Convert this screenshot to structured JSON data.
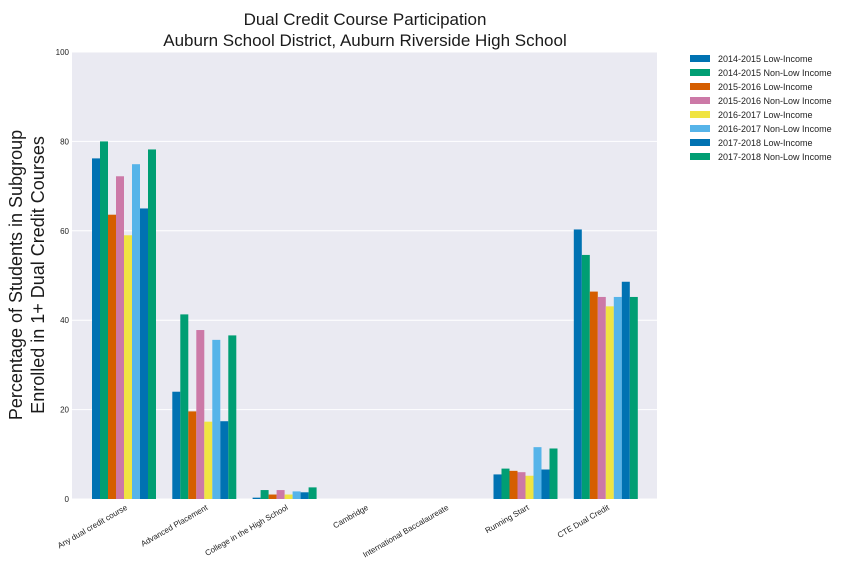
{
  "chart_data": {
    "type": "bar",
    "title": "Dual Credit Course Participation",
    "subtitle": "Auburn School District, Auburn Riverside High School",
    "ylabel_line1": "Percentage of Students in Subgroup",
    "ylabel_line2": "Enrolled in 1+ Dual Credit Courses",
    "ylim": [
      0,
      100
    ],
    "yticks": [
      0,
      20,
      40,
      60,
      80,
      100
    ],
    "grid": true,
    "legend_position": "right-outside",
    "categories": [
      "Any dual credit course",
      "Advanced Placement",
      "College in the High School",
      "Cambridge",
      "International Baccalaureate",
      "Running Start",
      "CTE Dual Credit"
    ],
    "series": [
      {
        "name": "2014-2015 Low-Income",
        "color": "#0072b2",
        "values": [
          76.2,
          24.0,
          0.3,
          0,
          0,
          5.5,
          60.3
        ]
      },
      {
        "name": "2014-2015 Non-Low Income",
        "color": "#009e73",
        "values": [
          80.0,
          41.3,
          2.0,
          0,
          0,
          6.8,
          54.6
        ]
      },
      {
        "name": "2015-2016 Low-Income",
        "color": "#d55e00",
        "values": [
          63.6,
          19.6,
          1.0,
          0,
          0,
          6.3,
          46.4
        ]
      },
      {
        "name": "2015-2016 Non-Low Income",
        "color": "#cc79a7",
        "values": [
          72.2,
          37.8,
          2.0,
          0,
          0,
          6.0,
          45.2
        ]
      },
      {
        "name": "2016-2017 Low-Income",
        "color": "#f0e442",
        "values": [
          59.0,
          17.3,
          1.0,
          0,
          0,
          5.2,
          43.1
        ]
      },
      {
        "name": "2016-2017 Non-Low Income",
        "color": "#56b4e9",
        "values": [
          74.9,
          35.6,
          1.7,
          0,
          0,
          11.6,
          45.2
        ]
      },
      {
        "name": "2017-2018 Low-Income",
        "color": "#0072b2",
        "values": [
          65.0,
          17.4,
          1.5,
          0,
          0,
          6.6,
          48.6
        ]
      },
      {
        "name": "2017-2018 Non-Low Income",
        "color": "#009e73",
        "values": [
          78.2,
          36.6,
          2.6,
          0,
          0,
          11.3,
          45.2
        ]
      }
    ]
  }
}
